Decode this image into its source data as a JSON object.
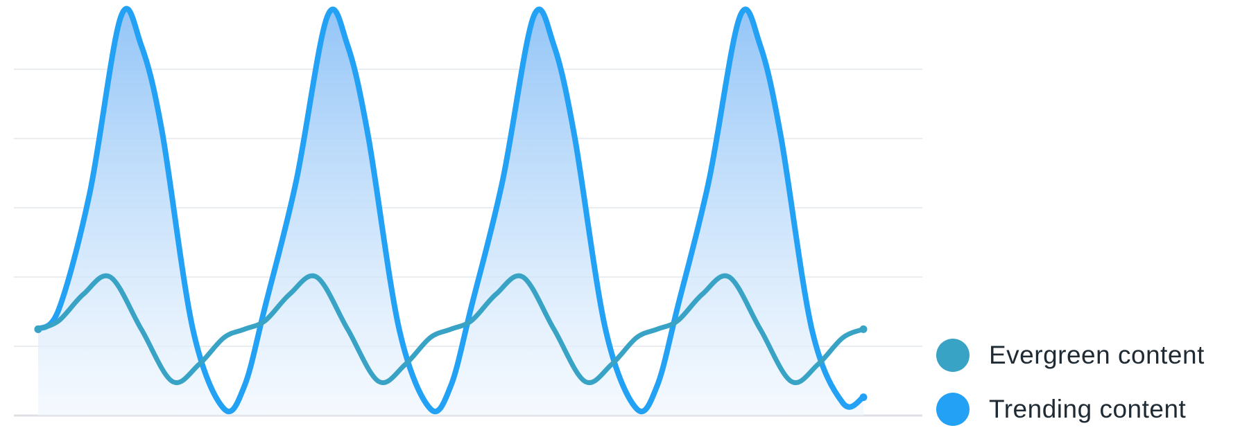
{
  "chart_data": {
    "type": "line",
    "title": "",
    "xlabel": "",
    "ylabel": "",
    "grid": true,
    "legend_position": "bottom-right",
    "series": [
      {
        "name": "Evergreen content",
        "color": "#38a3c5",
        "stroke_width": 7,
        "area_fill": false,
        "points": [
          [
            0,
            0.0
          ],
          [
            0.1,
            0.15
          ],
          [
            0.22,
            0.62
          ],
          [
            0.35,
            0.92
          ],
          [
            0.5,
            0.0
          ],
          [
            0.65,
            -0.92
          ],
          [
            0.78,
            -0.62
          ],
          [
            0.9,
            -0.15
          ],
          [
            1.0,
            0.0
          ],
          [
            1.1,
            0.15
          ],
          [
            1.22,
            0.62
          ],
          [
            1.35,
            0.92
          ],
          [
            1.5,
            0.0
          ],
          [
            1.65,
            -0.92
          ],
          [
            1.78,
            -0.62
          ],
          [
            1.9,
            -0.15
          ],
          [
            2.0,
            0.0
          ],
          [
            2.1,
            0.15
          ],
          [
            2.22,
            0.62
          ],
          [
            2.35,
            0.92
          ],
          [
            2.5,
            0.0
          ],
          [
            2.65,
            -0.92
          ],
          [
            2.78,
            -0.62
          ],
          [
            2.9,
            -0.15
          ],
          [
            3.0,
            0.0
          ],
          [
            3.1,
            0.15
          ],
          [
            3.22,
            0.62
          ],
          [
            3.35,
            0.92
          ],
          [
            3.5,
            0.0
          ],
          [
            3.65,
            -0.92
          ],
          [
            3.78,
            -0.62
          ],
          [
            3.9,
            -0.15
          ],
          [
            4.0,
            0.0
          ]
        ]
      },
      {
        "name": "Trending content",
        "color": "#22a1f5",
        "stroke_width": 8,
        "area_fill": true,
        "points": [
          [
            0,
            0.0
          ],
          [
            0.1,
            0.35
          ],
          [
            0.25,
            2.4
          ],
          [
            0.4,
            5.5
          ],
          [
            0.5,
            5.0
          ],
          [
            0.6,
            3.5
          ],
          [
            0.75,
            0.0
          ],
          [
            0.9,
            -1.4
          ],
          [
            1.0,
            -1.0
          ],
          [
            1.1,
            0.4
          ],
          [
            1.25,
            2.6
          ],
          [
            1.4,
            5.5
          ],
          [
            1.5,
            5.0
          ],
          [
            1.6,
            3.4
          ],
          [
            1.75,
            0.0
          ],
          [
            1.9,
            -1.4
          ],
          [
            2.0,
            -1.0
          ],
          [
            2.1,
            0.4
          ],
          [
            2.25,
            2.6
          ],
          [
            2.4,
            5.5
          ],
          [
            2.5,
            5.0
          ],
          [
            2.6,
            3.4
          ],
          [
            2.75,
            0.0
          ],
          [
            2.9,
            -1.4
          ],
          [
            3.0,
            -1.0
          ],
          [
            3.1,
            0.4
          ],
          [
            3.25,
            2.6
          ],
          [
            3.4,
            5.5
          ],
          [
            3.5,
            5.0
          ],
          [
            3.6,
            3.4
          ],
          [
            3.75,
            0.0
          ],
          [
            3.9,
            -1.3
          ],
          [
            4.0,
            -1.2
          ]
        ]
      }
    ],
    "ylim": [
      -1.4,
      5.5
    ],
    "xlim": [
      0,
      4.0
    ]
  }
}
